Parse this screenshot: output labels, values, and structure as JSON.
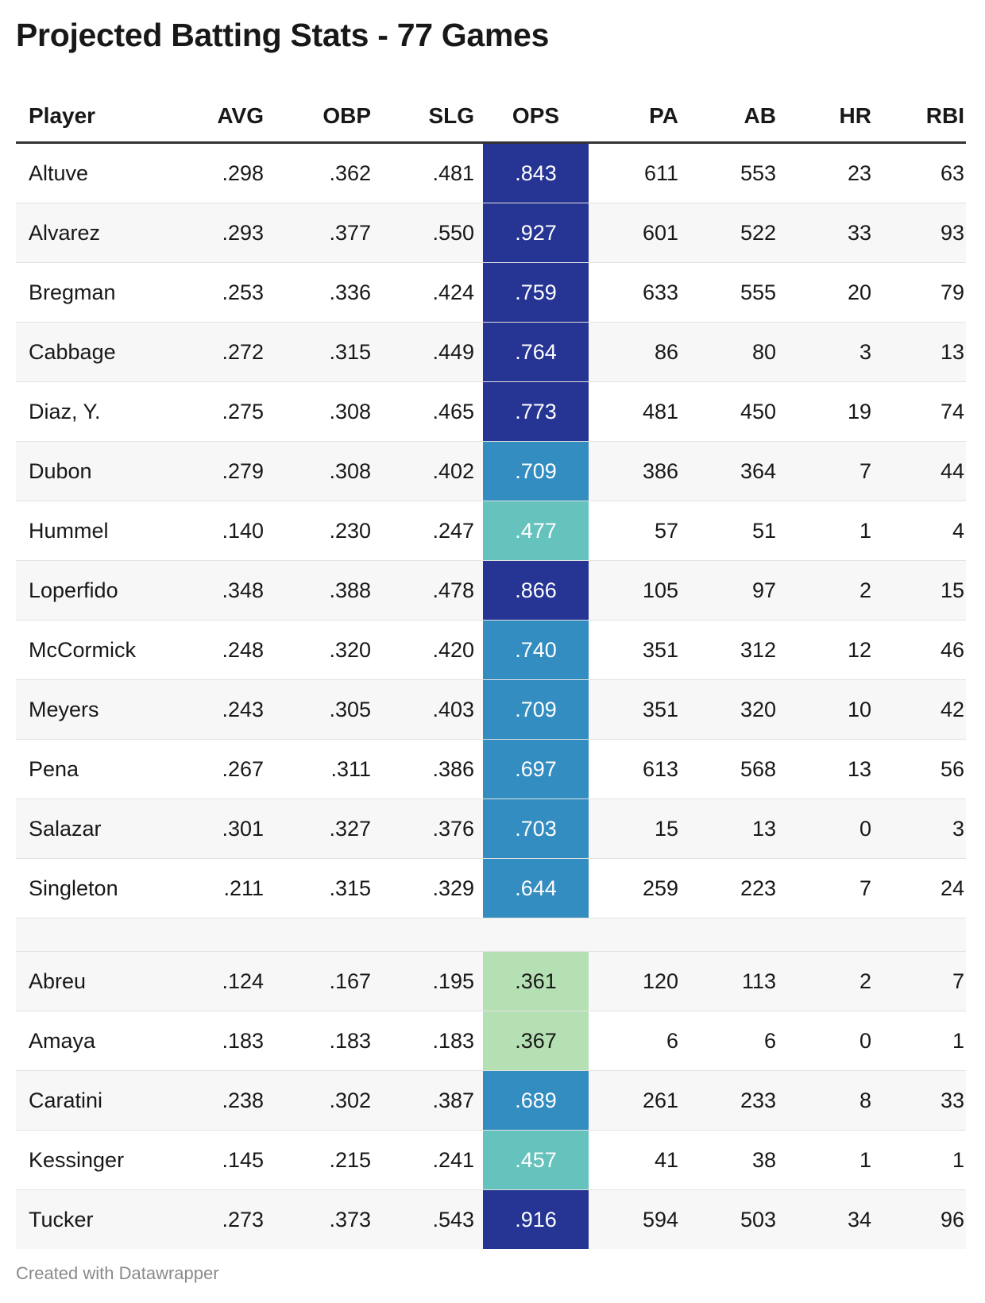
{
  "title": "Projected Batting Stats - 77 Games",
  "footer": "Created with Datawrapper",
  "colors": {
    "ops_scale": [
      "#b5e0b3",
      "#65c2bd",
      "#348dc0",
      "#263494"
    ]
  },
  "chart_data": {
    "type": "table",
    "columns": [
      "Player",
      "AVG",
      "OBP",
      "SLG",
      "OPS",
      "PA",
      "AB",
      "HR",
      "RBI"
    ],
    "groups": [
      {
        "rows": [
          {
            "Player": "Altuve",
            "AVG": ".298",
            "OBP": ".362",
            "SLG": ".481",
            "OPS": ".843",
            "PA": "611",
            "AB": "553",
            "HR": "23",
            "RBI": "63"
          },
          {
            "Player": "Alvarez",
            "AVG": ".293",
            "OBP": ".377",
            "SLG": ".550",
            "OPS": ".927",
            "PA": "601",
            "AB": "522",
            "HR": "33",
            "RBI": "93"
          },
          {
            "Player": "Bregman",
            "AVG": ".253",
            "OBP": ".336",
            "SLG": ".424",
            "OPS": ".759",
            "PA": "633",
            "AB": "555",
            "HR": "20",
            "RBI": "79"
          },
          {
            "Player": "Cabbage",
            "AVG": ".272",
            "OBP": ".315",
            "SLG": ".449",
            "OPS": ".764",
            "PA": "86",
            "AB": "80",
            "HR": "3",
            "RBI": "13"
          },
          {
            "Player": "Diaz, Y.",
            "AVG": ".275",
            "OBP": ".308",
            "SLG": ".465",
            "OPS": ".773",
            "PA": "481",
            "AB": "450",
            "HR": "19",
            "RBI": "74"
          },
          {
            "Player": "Dubon",
            "AVG": ".279",
            "OBP": ".308",
            "SLG": ".402",
            "OPS": ".709",
            "PA": "386",
            "AB": "364",
            "HR": "7",
            "RBI": "44"
          },
          {
            "Player": "Hummel",
            "AVG": ".140",
            "OBP": ".230",
            "SLG": ".247",
            "OPS": ".477",
            "PA": "57",
            "AB": "51",
            "HR": "1",
            "RBI": "4"
          },
          {
            "Player": "Loperfido",
            "AVG": ".348",
            "OBP": ".388",
            "SLG": ".478",
            "OPS": ".866",
            "PA": "105",
            "AB": "97",
            "HR": "2",
            "RBI": "15"
          },
          {
            "Player": "McCormick",
            "AVG": ".248",
            "OBP": ".320",
            "SLG": ".420",
            "OPS": ".740",
            "PA": "351",
            "AB": "312",
            "HR": "12",
            "RBI": "46"
          },
          {
            "Player": "Meyers",
            "AVG": ".243",
            "OBP": ".305",
            "SLG": ".403",
            "OPS": ".709",
            "PA": "351",
            "AB": "320",
            "HR": "10",
            "RBI": "42"
          },
          {
            "Player": "Pena",
            "AVG": ".267",
            "OBP": ".311",
            "SLG": ".386",
            "OPS": ".697",
            "PA": "613",
            "AB": "568",
            "HR": "13",
            "RBI": "56"
          },
          {
            "Player": "Salazar",
            "AVG": ".301",
            "OBP": ".327",
            "SLG": ".376",
            "OPS": ".703",
            "PA": "15",
            "AB": "13",
            "HR": "0",
            "RBI": "3"
          },
          {
            "Player": "Singleton",
            "AVG": ".211",
            "OBP": ".315",
            "SLG": ".329",
            "OPS": ".644",
            "PA": "259",
            "AB": "223",
            "HR": "7",
            "RBI": "24"
          }
        ]
      },
      {
        "rows": [
          {
            "Player": "Abreu",
            "AVG": ".124",
            "OBP": ".167",
            "SLG": ".195",
            "OPS": ".361",
            "PA": "120",
            "AB": "113",
            "HR": "2",
            "RBI": "7"
          },
          {
            "Player": "Amaya",
            "AVG": ".183",
            "OBP": ".183",
            "SLG": ".183",
            "OPS": ".367",
            "PA": "6",
            "AB": "6",
            "HR": "0",
            "RBI": "1"
          },
          {
            "Player": "Caratini",
            "AVG": ".238",
            "OBP": ".302",
            "SLG": ".387",
            "OPS": ".689",
            "PA": "261",
            "AB": "233",
            "HR": "8",
            "RBI": "33"
          },
          {
            "Player": "Kessinger",
            "AVG": ".145",
            "OBP": ".215",
            "SLG": ".241",
            "OPS": ".457",
            "PA": "41",
            "AB": "38",
            "HR": "1",
            "RBI": "1"
          },
          {
            "Player": "Tucker",
            "AVG": ".273",
            "OBP": ".373",
            "SLG": ".543",
            "OPS": ".916",
            "PA": "594",
            "AB": "503",
            "HR": "34",
            "RBI": "96"
          }
        ]
      }
    ]
  }
}
